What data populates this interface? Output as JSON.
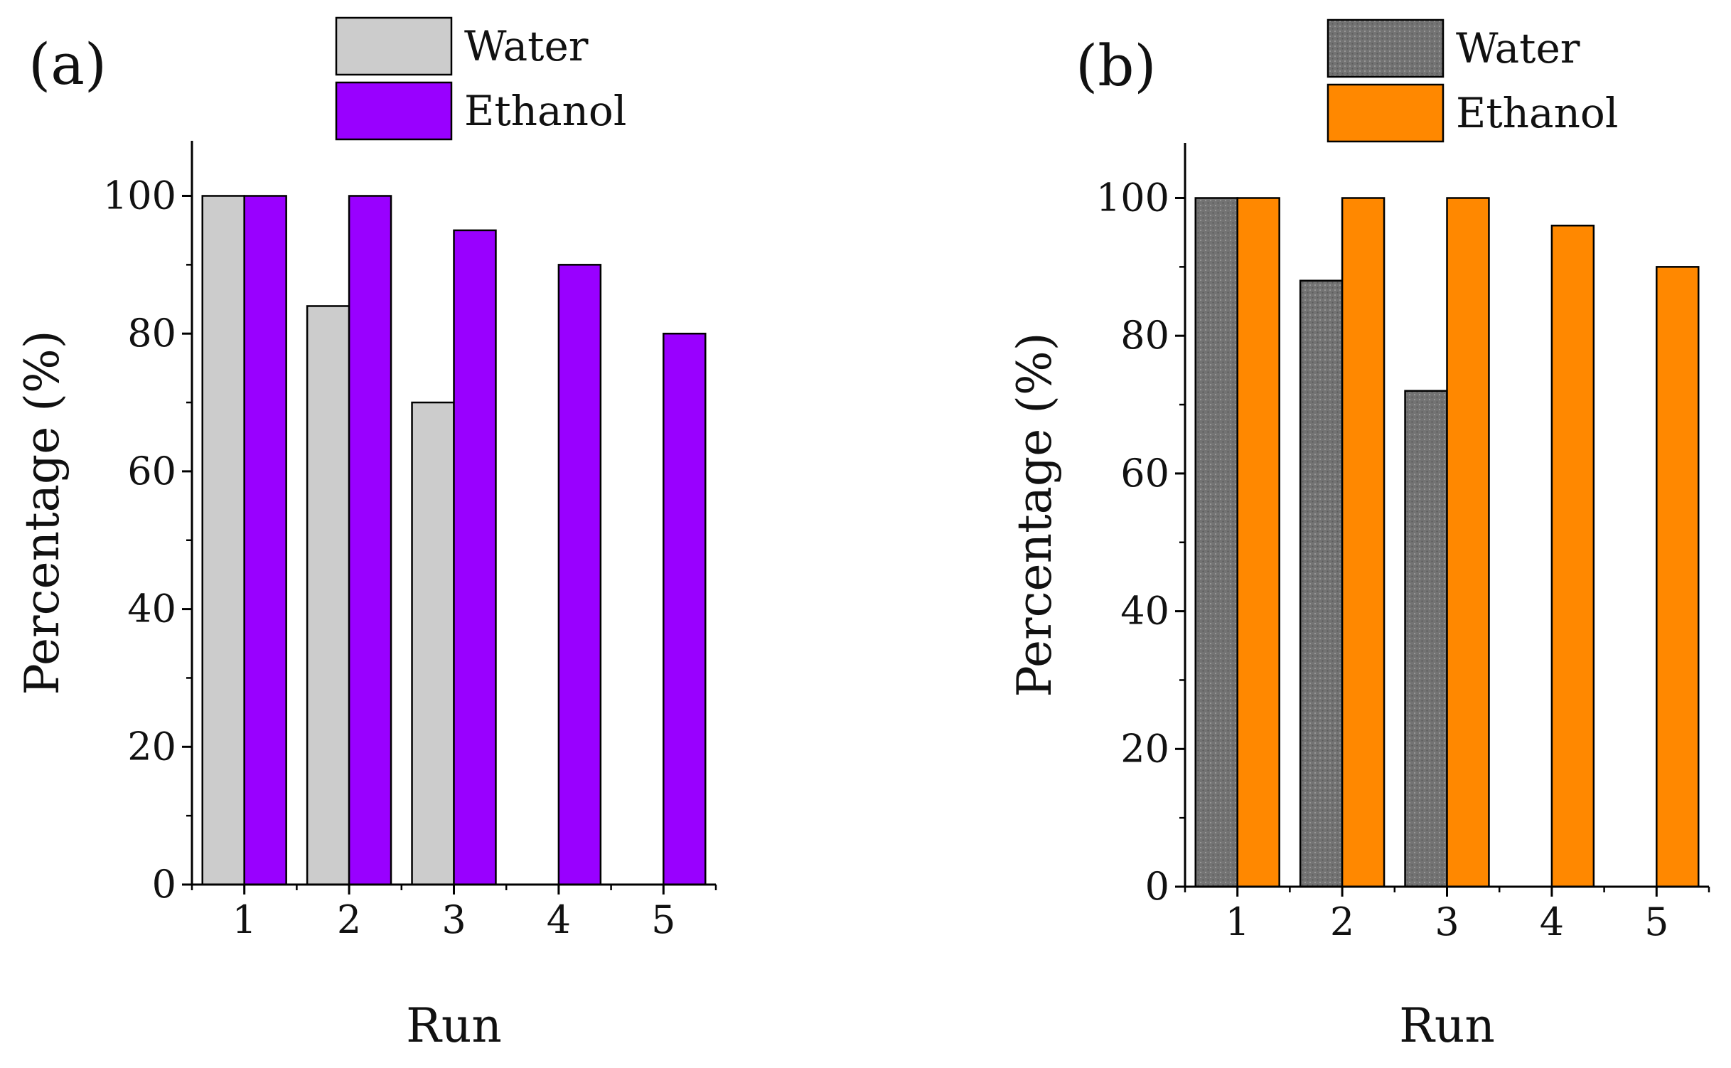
{
  "chart_data": [
    {
      "type": "bar",
      "panel_label": "(a)",
      "categories": [
        "1",
        "2",
        "3",
        "4",
        "5"
      ],
      "series": [
        {
          "name": "Water",
          "values": [
            100,
            84,
            70,
            0,
            0
          ],
          "color": "#cccccc",
          "pattern": "solid"
        },
        {
          "name": "Ethanol",
          "values": [
            100,
            100,
            95,
            90,
            80
          ],
          "color": "#9900ff",
          "pattern": "solid"
        }
      ],
      "xlabel": "Run",
      "ylabel": "Percentage (%)",
      "ylim": [
        0,
        108
      ],
      "yticks": [
        "0",
        "20",
        "40",
        "60",
        "80",
        "100"
      ],
      "grid": false,
      "legend_position": "top"
    },
    {
      "type": "bar",
      "panel_label": "(b)",
      "categories": [
        "1",
        "2",
        "3",
        "4",
        "5"
      ],
      "series": [
        {
          "name": "Water",
          "values": [
            100,
            88,
            72,
            0,
            0
          ],
          "color": "#737373",
          "pattern": "dotted"
        },
        {
          "name": "Ethanol",
          "values": [
            100,
            100,
            100,
            96,
            90
          ],
          "color": "#ff8800",
          "pattern": "solid"
        }
      ],
      "xlabel": "Run",
      "ylabel": "Percentage (%)",
      "ylim": [
        0,
        108
      ],
      "yticks": [
        "0",
        "20",
        "40",
        "60",
        "80",
        "100"
      ],
      "grid": false,
      "legend_position": "top"
    }
  ]
}
